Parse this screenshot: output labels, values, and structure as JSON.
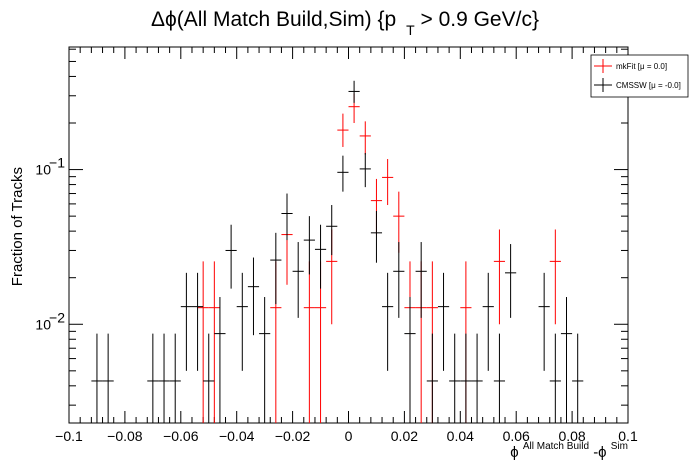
{
  "chart_data": {
    "type": "scatter",
    "title_main": "Δϕ(All Match Build,Sim) {p",
    "title_sub": "T",
    "title_tail": " > 0.9 GeV/c}",
    "ylabel": "Fraction of Tracks",
    "xlabel_phi1": "ϕ",
    "xlabel_sup1": "All Match Build",
    "xlabel_mid": "-ϕ",
    "xlabel_sup2": "Sim",
    "xlim": [
      -0.1,
      0.1
    ],
    "ylim": [
      0.0023,
      0.62
    ],
    "y_scale": "log",
    "grid": false,
    "legend_position": "top-right",
    "x_ticks": [
      {
        "v": -0.1,
        "label": "−0.1"
      },
      {
        "v": -0.08,
        "label": "−0.08"
      },
      {
        "v": -0.06,
        "label": "−0.06"
      },
      {
        "v": -0.04,
        "label": "−0.04"
      },
      {
        "v": -0.02,
        "label": "−0.02"
      },
      {
        "v": 0,
        "label": "0"
      },
      {
        "v": 0.02,
        "label": "0.02"
      },
      {
        "v": 0.04,
        "label": "0.04"
      },
      {
        "v": 0.06,
        "label": "0.06"
      },
      {
        "v": 0.08,
        "label": "0.08"
      },
      {
        "v": 0.1,
        "label": "0.1"
      }
    ],
    "y_ticks": [
      {
        "v": 0.01,
        "base": "10",
        "exp": "−2"
      },
      {
        "v": 0.1,
        "base": "10",
        "exp": "−1"
      }
    ],
    "bin_half_width": 0.002,
    "series": [
      {
        "name": "mkFit  [μ =  0.0]",
        "color": "#ff0000",
        "points": [
          {
            "x": -0.052,
            "y": 0.0128,
            "lo": 0.0023,
            "hi": 0.0255
          },
          {
            "x": -0.048,
            "y": 0.0128,
            "lo": 0.0023,
            "hi": 0.0255
          },
          {
            "x": -0.026,
            "y": 0.0128,
            "lo": 0.0023,
            "hi": 0.0255
          },
          {
            "x": -0.022,
            "y": 0.038,
            "lo": 0.018,
            "hi": 0.059
          },
          {
            "x": -0.014,
            "y": 0.0128,
            "lo": 0.0023,
            "hi": 0.0255
          },
          {
            "x": -0.01,
            "y": 0.0128,
            "lo": 0.0023,
            "hi": 0.0255
          },
          {
            "x": -0.006,
            "y": 0.0255,
            "lo": 0.01,
            "hi": 0.041
          },
          {
            "x": -0.002,
            "y": 0.18,
            "lo": 0.14,
            "hi": 0.23
          },
          {
            "x": 0.002,
            "y": 0.255,
            "lo": 0.2,
            "hi": 0.31
          },
          {
            "x": 0.006,
            "y": 0.165,
            "lo": 0.125,
            "hi": 0.205
          },
          {
            "x": 0.01,
            "y": 0.063,
            "lo": 0.038,
            "hi": 0.087
          },
          {
            "x": 0.014,
            "y": 0.089,
            "lo": 0.059,
            "hi": 0.117
          },
          {
            "x": 0.018,
            "y": 0.05,
            "lo": 0.029,
            "hi": 0.072
          },
          {
            "x": 0.022,
            "y": 0.0128,
            "lo": 0.0023,
            "hi": 0.0255
          },
          {
            "x": 0.026,
            "y": 0.0128,
            "lo": 0.0023,
            "hi": 0.0255
          },
          {
            "x": 0.03,
            "y": 0.0128,
            "lo": 0.0023,
            "hi": 0.0255
          },
          {
            "x": 0.042,
            "y": 0.0128,
            "lo": 0.0023,
            "hi": 0.0255
          },
          {
            "x": 0.054,
            "y": 0.0255,
            "lo": 0.01,
            "hi": 0.041
          },
          {
            "x": 0.074,
            "y": 0.0255,
            "lo": 0.01,
            "hi": 0.041
          }
        ]
      },
      {
        "name": "CMSSW  [μ = -0.0]",
        "color": "#000000",
        "points": [
          {
            "x": -0.09,
            "y": 0.0043,
            "lo": 0.0023,
            "hi": 0.0087
          },
          {
            "x": -0.086,
            "y": 0.0043,
            "lo": 0.0023,
            "hi": 0.0087
          },
          {
            "x": -0.07,
            "y": 0.0043,
            "lo": 0.0023,
            "hi": 0.0087
          },
          {
            "x": -0.066,
            "y": 0.0043,
            "lo": 0.0023,
            "hi": 0.0087
          },
          {
            "x": -0.062,
            "y": 0.0043,
            "lo": 0.0023,
            "hi": 0.0087
          },
          {
            "x": -0.058,
            "y": 0.013,
            "lo": 0.005,
            "hi": 0.0215
          },
          {
            "x": -0.054,
            "y": 0.013,
            "lo": 0.005,
            "hi": 0.0215
          },
          {
            "x": -0.05,
            "y": 0.0043,
            "lo": 0.0023,
            "hi": 0.0087
          },
          {
            "x": -0.046,
            "y": 0.0087,
            "lo": 0.0023,
            "hi": 0.015
          },
          {
            "x": -0.042,
            "y": 0.03,
            "lo": 0.017,
            "hi": 0.044
          },
          {
            "x": -0.038,
            "y": 0.013,
            "lo": 0.005,
            "hi": 0.0215
          },
          {
            "x": -0.034,
            "y": 0.0175,
            "lo": 0.0085,
            "hi": 0.027
          },
          {
            "x": -0.03,
            "y": 0.0087,
            "lo": 0.0023,
            "hi": 0.015
          },
          {
            "x": -0.026,
            "y": 0.026,
            "lo": 0.0135,
            "hi": 0.039
          },
          {
            "x": -0.022,
            "y": 0.052,
            "lo": 0.035,
            "hi": 0.07
          },
          {
            "x": -0.018,
            "y": 0.022,
            "lo": 0.011,
            "hi": 0.034
          },
          {
            "x": -0.014,
            "y": 0.035,
            "lo": 0.021,
            "hi": 0.05
          },
          {
            "x": -0.01,
            "y": 0.0305,
            "lo": 0.017,
            "hi": 0.044
          },
          {
            "x": -0.006,
            "y": 0.043,
            "lo": 0.028,
            "hi": 0.059
          },
          {
            "x": -0.002,
            "y": 0.096,
            "lo": 0.072,
            "hi": 0.123
          },
          {
            "x": 0.002,
            "y": 0.32,
            "lo": 0.27,
            "hi": 0.375
          },
          {
            "x": 0.006,
            "y": 0.101,
            "lo": 0.077,
            "hi": 0.128
          },
          {
            "x": 0.01,
            "y": 0.039,
            "lo": 0.025,
            "hi": 0.054
          },
          {
            "x": 0.014,
            "y": 0.013,
            "lo": 0.005,
            "hi": 0.0215
          },
          {
            "x": 0.018,
            "y": 0.022,
            "lo": 0.011,
            "hi": 0.034
          },
          {
            "x": 0.022,
            "y": 0.0087,
            "lo": 0.0023,
            "hi": 0.015
          },
          {
            "x": 0.026,
            "y": 0.022,
            "lo": 0.011,
            "hi": 0.034
          },
          {
            "x": 0.03,
            "y": 0.0043,
            "lo": 0.0023,
            "hi": 0.0087
          },
          {
            "x": 0.034,
            "y": 0.013,
            "lo": 0.005,
            "hi": 0.0215
          },
          {
            "x": 0.038,
            "y": 0.0043,
            "lo": 0.0023,
            "hi": 0.0087
          },
          {
            "x": 0.042,
            "y": 0.0043,
            "lo": 0.0023,
            "hi": 0.0087
          },
          {
            "x": 0.046,
            "y": 0.0043,
            "lo": 0.0023,
            "hi": 0.0087
          },
          {
            "x": 0.05,
            "y": 0.013,
            "lo": 0.005,
            "hi": 0.0215
          },
          {
            "x": 0.054,
            "y": 0.0043,
            "lo": 0.0023,
            "hi": 0.0087
          },
          {
            "x": 0.058,
            "y": 0.0215,
            "lo": 0.011,
            "hi": 0.033
          },
          {
            "x": 0.07,
            "y": 0.013,
            "lo": 0.005,
            "hi": 0.0215
          },
          {
            "x": 0.074,
            "y": 0.0043,
            "lo": 0.0023,
            "hi": 0.0087
          },
          {
            "x": 0.078,
            "y": 0.0087,
            "lo": 0.0023,
            "hi": 0.015
          },
          {
            "x": 0.082,
            "y": 0.0043,
            "lo": 0.0023,
            "hi": 0.0087
          }
        ]
      }
    ]
  }
}
